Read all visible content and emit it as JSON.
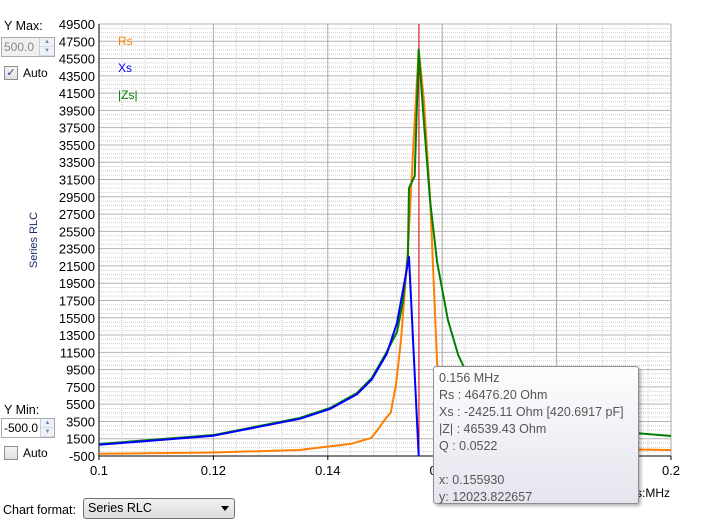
{
  "controls": {
    "ymax_label": "Y Max:",
    "ymax_value": "500.0",
    "ymax_auto_label": "Auto",
    "ymax_auto_checked": true,
    "ymin_label": "Y Min:",
    "ymin_value": "-500.0",
    "ymin_auto_label": "Auto",
    "ymin_auto_checked": false,
    "chart_format_label": "Chart format:",
    "chart_format_value": "Series RLC"
  },
  "tooltip": {
    "freq": "0.156 MHz",
    "rs": "Rs :  46476.20 Ohm",
    "xs": "Xs :  -2425.11 Ohm [420.6917 pF]",
    "z": "|Z| :  46539.43 Ohm",
    "q": "Q :  0.0522",
    "x": "x: 0.155930",
    "y": "y: 12023.822657"
  },
  "chart_data": {
    "type": "line",
    "ylabel": "Series RLC",
    "xlabel": "s:MHz",
    "xlim": [
      0.1,
      0.2
    ],
    "ylim": [
      -500,
      49500
    ],
    "xticks": [
      "0.1",
      "0.12",
      "0.14",
      "0.16",
      "0.18",
      "0.2"
    ],
    "yticks": [
      "49500",
      "47500",
      "45500",
      "43500",
      "41500",
      "39500",
      "37500",
      "35500",
      "33500",
      "31500",
      "29500",
      "27500",
      "25500",
      "23500",
      "21500",
      "19500",
      "17500",
      "15500",
      "13500",
      "11500",
      "9500",
      "7500",
      "5500",
      "3500",
      "1500",
      "-500"
    ],
    "grid": true,
    "legend_placement": "top-left",
    "cursor_x": 0.15593,
    "cursor_color": "#e00000",
    "series": [
      {
        "name": "Rs",
        "color": "#ff8000",
        "points": [
          [
            0.1,
            -250
          ],
          [
            0.12,
            -100
          ],
          [
            0.135,
            200
          ],
          [
            0.144,
            900
          ],
          [
            0.1476,
            1600
          ],
          [
            0.1488,
            2600
          ],
          [
            0.1502,
            3900
          ],
          [
            0.151,
            4500
          ],
          [
            0.1519,
            7700
          ],
          [
            0.1528,
            12930
          ],
          [
            0.154,
            23340
          ],
          [
            0.1551,
            37230
          ],
          [
            0.1559,
            46476
          ],
          [
            0.1568,
            40700
          ],
          [
            0.1579,
            29130
          ],
          [
            0.1591,
            10260
          ],
          [
            0.1598,
            5980
          ],
          [
            0.163,
            1200
          ],
          [
            0.17,
            500
          ],
          [
            0.2,
            200
          ]
        ]
      },
      {
        "name": "Xs",
        "color": "#0000ff",
        "points": [
          [
            0.1,
            800
          ],
          [
            0.12,
            1850
          ],
          [
            0.1351,
            3800
          ],
          [
            0.1404,
            4950
          ],
          [
            0.1451,
            6650
          ],
          [
            0.1477,
            8350
          ],
          [
            0.1503,
            11300
          ],
          [
            0.1521,
            14900
          ],
          [
            0.1531,
            18500
          ],
          [
            0.1542,
            22530
          ],
          [
            0.1559,
            -500
          ]
        ]
      },
      {
        "name": "|Zs|",
        "color": "#008000",
        "points": [
          [
            0.1,
            890
          ],
          [
            0.1201,
            1930
          ],
          [
            0.1351,
            3900
          ],
          [
            0.1404,
            5060
          ],
          [
            0.1451,
            6790
          ],
          [
            0.1477,
            8530
          ],
          [
            0.1503,
            11540
          ],
          [
            0.1521,
            13850
          ],
          [
            0.1531,
            17200
          ],
          [
            0.154,
            22530
          ],
          [
            0.1542,
            30520
          ],
          [
            0.1552,
            31900
          ],
          [
            0.1559,
            46540
          ],
          [
            0.1568,
            38160
          ],
          [
            0.1579,
            28900
          ],
          [
            0.1591,
            21950
          ],
          [
            0.161,
            15240
          ],
          [
            0.1628,
            11190
          ],
          [
            0.1649,
            8300
          ],
          [
            0.1701,
            4820
          ],
          [
            0.1876,
            2510
          ],
          [
            0.2,
            1815
          ]
        ]
      }
    ]
  }
}
